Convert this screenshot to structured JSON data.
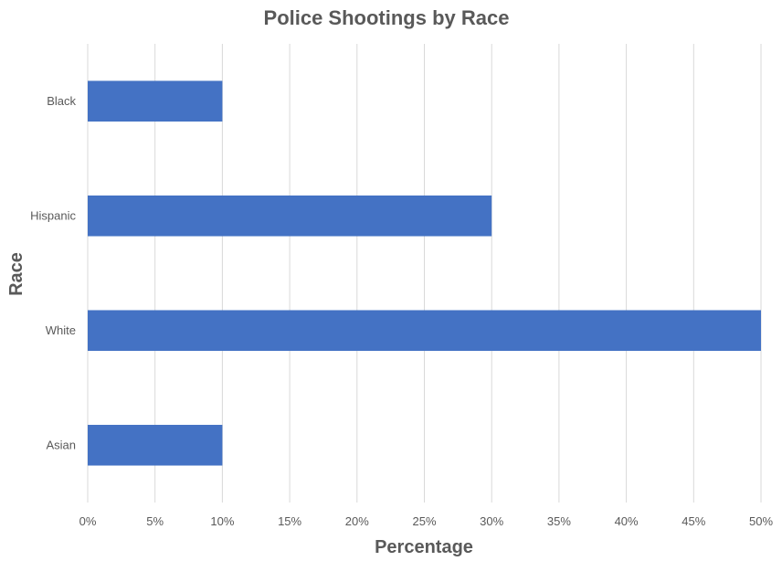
{
  "chart_data": {
    "type": "bar",
    "orientation": "horizontal",
    "title": "Police Shootings by Race",
    "xlabel": "Percentage",
    "ylabel": "Race",
    "categories": [
      "Black",
      "Hispanic",
      "White",
      "Asian"
    ],
    "values": [
      10,
      30,
      50,
      10
    ],
    "xlim": [
      0,
      50
    ],
    "x_ticks": [
      "0%",
      "5%",
      "10%",
      "15%",
      "20%",
      "25%",
      "30%",
      "35%",
      "40%",
      "45%",
      "50%"
    ],
    "grid": "vertical",
    "legend": "none",
    "bar_color": "#4472c4"
  }
}
